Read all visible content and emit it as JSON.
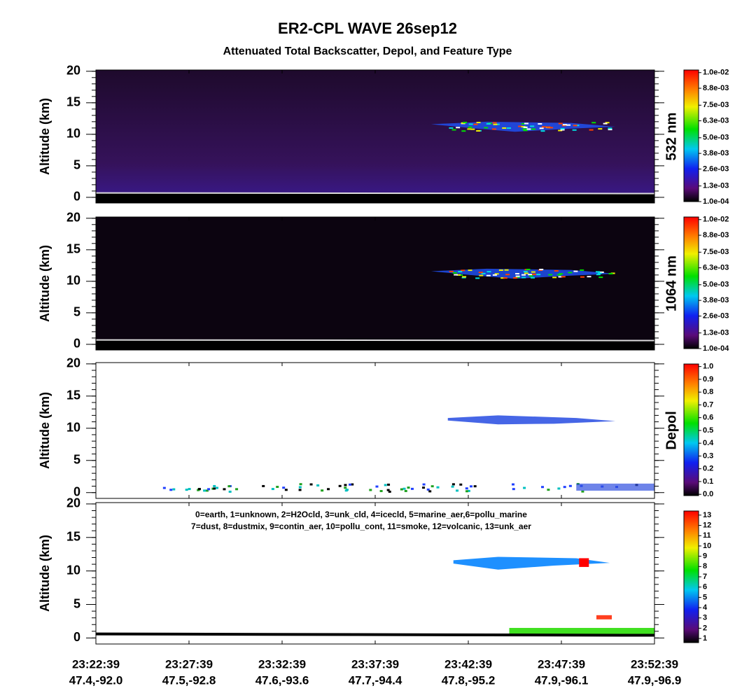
{
  "chart_data": {
    "type": "heatmap",
    "title": "ER2-CPL WAVE 26sep12",
    "subtitle": "Attenuated Total Backscatter, Depol, and Feature Type",
    "xtick_labels": [
      [
        "23:22:39",
        "47.4,-92.0"
      ],
      [
        "23:27:39",
        "47.5,-92.8"
      ],
      [
        "23:32:39",
        "47.6,-93.6"
      ],
      [
        "23:37:39",
        "47.7,-94.4"
      ],
      [
        "23:42:39",
        "47.8,-95.2"
      ],
      [
        "23:47:39",
        "47.9,-96.1"
      ],
      [
        "23:52:39",
        "47.9,-96.9"
      ]
    ],
    "panels": [
      {
        "ylabel": "Altitude (km)",
        "side_label": "532 nm",
        "ylim": [
          -0.9,
          20.2
        ],
        "yticks": [
          0,
          5,
          10,
          15,
          20
        ],
        "colorbar": {
          "lim": [
            0.0001,
            0.0102
          ],
          "ticks": [
            {
              "value": 0.0001,
              "label": "1.0e-04"
            },
            {
              "value": 0.0013,
              "label": "1.3e-03"
            },
            {
              "value": 0.0026,
              "label": "2.6e-03"
            },
            {
              "value": 0.0038,
              "label": "3.8e-03"
            },
            {
              "value": 0.005,
              "label": "5.0e-03"
            },
            {
              "value": 0.0063,
              "label": "6.3e-03"
            },
            {
              "value": 0.0075,
              "label": "7.5e-03"
            },
            {
              "value": 0.0088,
              "label": "8.8e-03"
            },
            {
              "value": 0.01,
              "label": "1.0e-02"
            }
          ]
        }
      },
      {
        "ylabel": "Altitude (km)",
        "side_label": "1064 nm",
        "ylim": [
          -0.9,
          20.2
        ],
        "yticks": [
          0,
          5,
          10,
          15,
          20
        ],
        "colorbar": {
          "lim": [
            0.0001,
            0.0102
          ],
          "ticks": [
            {
              "value": 0.0001,
              "label": "1.0e-04"
            },
            {
              "value": 0.0013,
              "label": "1.3e-03"
            },
            {
              "value": 0.0026,
              "label": "2.6e-03"
            },
            {
              "value": 0.0038,
              "label": "3.8e-03"
            },
            {
              "value": 0.005,
              "label": "5.0e-03"
            },
            {
              "value": 0.0063,
              "label": "6.3e-03"
            },
            {
              "value": 0.0075,
              "label": "7.5e-03"
            },
            {
              "value": 0.0088,
              "label": "8.8e-03"
            },
            {
              "value": 0.01,
              "label": "1.0e-02"
            }
          ]
        }
      },
      {
        "ylabel": "Altitude (km)",
        "side_label": "Depol",
        "ylim": [
          -0.9,
          20.2
        ],
        "yticks": [
          0,
          5,
          10,
          15,
          20
        ],
        "colorbar": {
          "lim": [
            -0.01,
            1.02
          ],
          "ticks": [
            {
              "value": 0,
              "label": "0.0"
            },
            {
              "value": 0.1,
              "label": "0.1"
            },
            {
              "value": 0.2,
              "label": "0.2"
            },
            {
              "value": 0.3,
              "label": "0.3"
            },
            {
              "value": 0.4,
              "label": "0.4"
            },
            {
              "value": 0.5,
              "label": "0.5"
            },
            {
              "value": 0.6,
              "label": "0.6"
            },
            {
              "value": 0.7,
              "label": "0.7"
            },
            {
              "value": 0.8,
              "label": "0.8"
            },
            {
              "value": 0.9,
              "label": "0.9"
            },
            {
              "value": 1,
              "label": "1.0"
            }
          ]
        }
      },
      {
        "ylabel": "Altitude (km)",
        "ylim": [
          -0.9,
          20.2
        ],
        "yticks": [
          0,
          5,
          10,
          15,
          20
        ],
        "legend_text": [
          "0=earth, 1=unknown, 2=H2Ocld, 3=unk_cld, 4=icecld, 5=marine_aer,6=pollu_marine",
          "7=dust, 8=dustmix, 9=contin_aer, 10=pollu_cont, 11=smoke, 12=volcanic, 13=unk_aer"
        ],
        "colorbar": {
          "lim": [
            0.6,
            13.4
          ],
          "ticks": [
            1,
            2,
            3,
            4,
            5,
            6,
            7,
            8,
            9,
            10,
            11,
            12,
            13
          ]
        }
      }
    ]
  }
}
